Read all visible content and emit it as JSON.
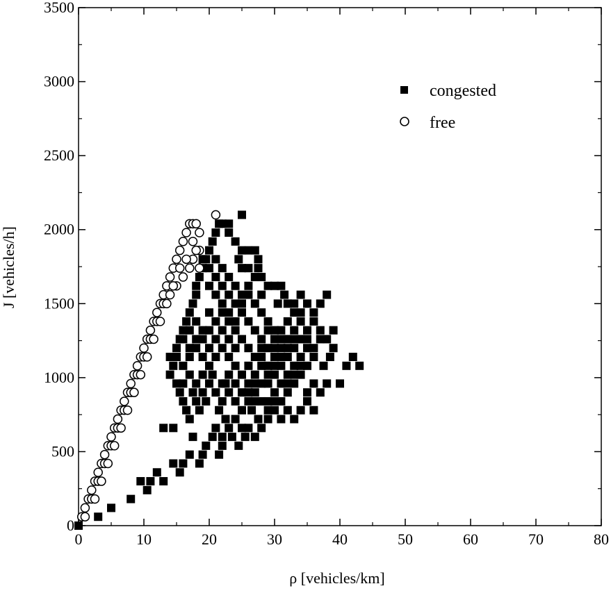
{
  "chart_data": {
    "type": "scatter",
    "title": "",
    "xlabel": "ρ [vehicles/km]",
    "ylabel": "J [vehicles/h]",
    "xlim": [
      0,
      80
    ],
    "ylim": [
      0,
      3500
    ],
    "xticks": [
      0,
      10,
      20,
      30,
      40,
      50,
      60,
      70,
      80
    ],
    "yticks": [
      0,
      500,
      1000,
      1500,
      2000,
      2500,
      3000,
      3500
    ],
    "grid": false,
    "legend_position": "top-right",
    "series": [
      {
        "name": "congested",
        "marker": "filled-square",
        "color": "#000000",
        "points": [
          [
            0,
            0
          ],
          [
            3,
            60
          ],
          [
            5,
            120
          ],
          [
            8,
            180
          ],
          [
            9.5,
            300
          ],
          [
            10.5,
            240
          ],
          [
            11,
            300
          ],
          [
            12,
            360
          ],
          [
            13,
            300
          ],
          [
            13,
            660
          ],
          [
            14.5,
            660
          ],
          [
            14.5,
            420
          ],
          [
            15.5,
            360
          ],
          [
            16,
            420
          ],
          [
            17,
            480
          ],
          [
            17.5,
            600
          ],
          [
            18.5,
            420
          ],
          [
            19,
            480
          ],
          [
            19.5,
            540
          ],
          [
            20.5,
            600
          ],
          [
            21,
            660
          ],
          [
            21.5,
            480
          ],
          [
            22,
            540
          ],
          [
            22,
            600
          ],
          [
            22.5,
            720
          ],
          [
            23,
            660
          ],
          [
            23.5,
            600
          ],
          [
            24,
            720
          ],
          [
            24.5,
            540
          ],
          [
            25,
            660
          ],
          [
            25.5,
            600
          ],
          [
            26,
            660
          ],
          [
            26.5,
            780
          ],
          [
            27,
            600
          ],
          [
            27.5,
            720
          ],
          [
            28,
            660
          ],
          [
            29,
            720
          ],
          [
            30,
            780
          ],
          [
            31,
            720
          ],
          [
            32,
            780
          ],
          [
            33,
            720
          ],
          [
            34,
            780
          ],
          [
            35,
            840
          ],
          [
            36,
            780
          ],
          [
            14,
            1020
          ],
          [
            14.5,
            1080
          ],
          [
            15,
            960
          ],
          [
            15.5,
            900
          ],
          [
            16,
            840
          ],
          [
            16.5,
            780
          ],
          [
            17,
            720
          ],
          [
            17.5,
            900
          ],
          [
            18,
            840
          ],
          [
            18.5,
            780
          ],
          [
            19,
            900
          ],
          [
            19.5,
            840
          ],
          [
            20,
            960
          ],
          [
            20.5,
            1020
          ],
          [
            21,
            900
          ],
          [
            21.5,
            780
          ],
          [
            22,
            840
          ],
          [
            22.5,
            960
          ],
          [
            23,
            900
          ],
          [
            24,
            840
          ],
          [
            25,
            780
          ],
          [
            26,
            840
          ],
          [
            27,
            900
          ],
          [
            28,
            960
          ],
          [
            29,
            840
          ],
          [
            30,
            900
          ],
          [
            31,
            960
          ],
          [
            32,
            900
          ],
          [
            33,
            960
          ],
          [
            34,
            1020
          ],
          [
            35,
            900
          ],
          [
            36,
            960
          ],
          [
            37,
            900
          ],
          [
            38,
            960
          ],
          [
            40,
            960
          ],
          [
            41,
            1080
          ],
          [
            42,
            1140
          ],
          [
            43,
            1080
          ],
          [
            37.5,
            1080
          ],
          [
            38.5,
            1140
          ],
          [
            39,
            1200
          ],
          [
            37,
            1260
          ],
          [
            38,
            1260
          ],
          [
            39,
            1320
          ],
          [
            14,
            1140
          ],
          [
            15,
            1200
          ],
          [
            15.5,
            1260
          ],
          [
            16,
            1320
          ],
          [
            16.5,
            1380
          ],
          [
            17,
            1440
          ],
          [
            17.5,
            1500
          ],
          [
            18,
            1560
          ],
          [
            18,
            1620
          ],
          [
            18.5,
            1680
          ],
          [
            19,
            1740
          ],
          [
            19.5,
            1800
          ],
          [
            20,
            1860
          ],
          [
            20.5,
            1920
          ],
          [
            21,
            1980
          ],
          [
            21.5,
            2040
          ],
          [
            22,
            2040
          ],
          [
            23,
            2040
          ],
          [
            25,
            2100
          ],
          [
            23,
            1980
          ],
          [
            24,
            1920
          ],
          [
            25,
            1860
          ],
          [
            26,
            1860
          ],
          [
            27,
            1860
          ],
          [
            27.5,
            1800
          ],
          [
            27.5,
            1740
          ],
          [
            24.5,
            1800
          ],
          [
            25,
            1740
          ],
          [
            26,
            1740
          ],
          [
            27,
            1680
          ],
          [
            28,
            1680
          ],
          [
            29,
            1620
          ],
          [
            30,
            1620
          ],
          [
            31,
            1620
          ],
          [
            31.5,
            1560
          ],
          [
            28,
            1560
          ],
          [
            30.5,
            1500
          ],
          [
            32,
            1500
          ],
          [
            33,
            1500
          ],
          [
            34,
            1440
          ],
          [
            35,
            1500
          ],
          [
            36,
            1440
          ],
          [
            37,
            1500
          ],
          [
            38,
            1560
          ],
          [
            36,
            1380
          ],
          [
            37,
            1320
          ],
          [
            35,
            1320
          ],
          [
            34,
            1260
          ],
          [
            33,
            1200
          ],
          [
            35,
            1200
          ],
          [
            34,
            1140
          ],
          [
            33,
            1080
          ],
          [
            32,
            1020
          ],
          [
            31,
            1080
          ],
          [
            30,
            1140
          ],
          [
            29,
            1200
          ],
          [
            28,
            1260
          ],
          [
            27,
            1320
          ],
          [
            26,
            1380
          ],
          [
            25,
            1440
          ],
          [
            24,
            1500
          ],
          [
            23,
            1560
          ],
          [
            22,
            1620
          ],
          [
            21,
            1680
          ],
          [
            20,
            1740
          ],
          [
            19,
            1800
          ],
          [
            18,
            1380
          ],
          [
            17,
            1320
          ],
          [
            16,
            1260
          ],
          [
            15,
            1140
          ],
          [
            16,
            1080
          ],
          [
            17,
            1140
          ],
          [
            18,
            1200
          ],
          [
            19,
            1260
          ],
          [
            20,
            1320
          ],
          [
            21,
            1380
          ],
          [
            22,
            1440
          ],
          [
            23,
            1380
          ],
          [
            24,
            1320
          ],
          [
            25,
            1260
          ],
          [
            26,
            1200
          ],
          [
            27,
            1140
          ],
          [
            28,
            1080
          ],
          [
            29,
            1020
          ],
          [
            30,
            1020
          ],
          [
            31,
            1200
          ],
          [
            32,
            1260
          ],
          [
            33,
            1320
          ],
          [
            34,
            1380
          ],
          [
            21,
            1560
          ],
          [
            22,
            1500
          ],
          [
            23,
            1440
          ],
          [
            24,
            1380
          ],
          [
            25,
            1500
          ],
          [
            26,
            1560
          ],
          [
            27,
            1500
          ],
          [
            28,
            1440
          ],
          [
            29,
            1380
          ],
          [
            30,
            1320
          ],
          [
            31,
            1260
          ],
          [
            32,
            1140
          ],
          [
            20,
            1620
          ],
          [
            21,
            1800
          ],
          [
            22,
            1740
          ],
          [
            23,
            1680
          ],
          [
            24,
            1620
          ],
          [
            25,
            1560
          ],
          [
            26,
            1620
          ],
          [
            20,
            1080
          ],
          [
            21,
            1140
          ],
          [
            22,
            1200
          ],
          [
            23,
            1260
          ],
          [
            24,
            1080
          ],
          [
            25,
            1020
          ],
          [
            26,
            1080
          ],
          [
            27,
            1020
          ],
          [
            28,
            1140
          ],
          [
            29,
            1080
          ],
          [
            30,
            1200
          ],
          [
            19,
            1140
          ],
          [
            19,
            1020
          ],
          [
            18,
            960
          ],
          [
            17,
            1020
          ],
          [
            16,
            960
          ],
          [
            17,
            1200
          ],
          [
            18,
            1260
          ],
          [
            19,
            1320
          ],
          [
            20,
            1440
          ],
          [
            21,
            1260
          ],
          [
            22,
            1320
          ],
          [
            23,
            1140
          ],
          [
            24,
            1200
          ],
          [
            26,
            960
          ],
          [
            27,
            960
          ],
          [
            28,
            1200
          ],
          [
            29,
            1320
          ],
          [
            30,
            1260
          ],
          [
            31,
            1320
          ],
          [
            32,
            1380
          ],
          [
            33,
            1440
          ],
          [
            34,
            1560
          ],
          [
            20,
            1200
          ],
          [
            22,
            960
          ],
          [
            23,
            1020
          ],
          [
            24,
            960
          ],
          [
            25,
            900
          ],
          [
            26,
            900
          ],
          [
            27,
            840
          ],
          [
            28,
            840
          ],
          [
            29,
            960
          ],
          [
            30,
            1080
          ],
          [
            31,
            1140
          ],
          [
            32,
            1200
          ],
          [
            33,
            1260
          ],
          [
            35,
            1260
          ],
          [
            36,
            1200
          ],
          [
            36,
            1140
          ],
          [
            35,
            1080
          ],
          [
            34,
            1080
          ],
          [
            33,
            1020
          ],
          [
            32,
            960
          ],
          [
            31,
            840
          ],
          [
            30,
            840
          ],
          [
            29,
            780
          ]
        ]
      },
      {
        "name": "free",
        "marker": "open-circle",
        "color": "#000000",
        "points": [
          [
            0.5,
            60
          ],
          [
            1,
            120
          ],
          [
            1.5,
            180
          ],
          [
            2,
            240
          ],
          [
            2.5,
            300
          ],
          [
            3,
            360
          ],
          [
            3.5,
            420
          ],
          [
            4,
            480
          ],
          [
            4.5,
            540
          ],
          [
            5,
            600
          ],
          [
            5.5,
            660
          ],
          [
            6,
            720
          ],
          [
            6.5,
            780
          ],
          [
            7,
            840
          ],
          [
            7.5,
            900
          ],
          [
            8,
            960
          ],
          [
            8.5,
            1020
          ],
          [
            9,
            1080
          ],
          [
            9.5,
            1140
          ],
          [
            10,
            1200
          ],
          [
            10.5,
            1260
          ],
          [
            11,
            1320
          ],
          [
            11.5,
            1380
          ],
          [
            12,
            1440
          ],
          [
            12.5,
            1500
          ],
          [
            13,
            1560
          ],
          [
            13.5,
            1620
          ],
          [
            14,
            1680
          ],
          [
            14.5,
            1740
          ],
          [
            15,
            1800
          ],
          [
            15.5,
            1860
          ],
          [
            16,
            1920
          ],
          [
            16.5,
            1980
          ],
          [
            17,
            2040
          ],
          [
            17.5,
            2040
          ],
          [
            18,
            2040
          ],
          [
            18.5,
            1980
          ],
          [
            18.5,
            1860
          ],
          [
            18.5,
            1740
          ],
          [
            17.5,
            1800
          ],
          [
            17,
            1740
          ],
          [
            16,
            1680
          ],
          [
            15,
            1620
          ],
          [
            14,
            1560
          ],
          [
            13,
            1500
          ],
          [
            12,
            1380
          ],
          [
            11,
            1260
          ],
          [
            10,
            1140
          ],
          [
            9,
            1020
          ],
          [
            8,
            900
          ],
          [
            7,
            780
          ],
          [
            6,
            660
          ],
          [
            5,
            540
          ],
          [
            4,
            420
          ],
          [
            3,
            300
          ],
          [
            2,
            180
          ],
          [
            1,
            60
          ],
          [
            17.5,
            1920
          ],
          [
            18,
            1860
          ],
          [
            21,
            2100
          ],
          [
            16.5,
            1800
          ],
          [
            15.5,
            1740
          ],
          [
            14.5,
            1620
          ],
          [
            13.5,
            1500
          ],
          [
            12.5,
            1380
          ],
          [
            11.5,
            1260
          ],
          [
            10.5,
            1140
          ],
          [
            9.5,
            1020
          ],
          [
            8.5,
            900
          ],
          [
            7.5,
            780
          ],
          [
            6.5,
            660
          ],
          [
            5.5,
            540
          ],
          [
            4.5,
            420
          ],
          [
            3.5,
            300
          ],
          [
            2.5,
            180
          ]
        ]
      }
    ]
  }
}
